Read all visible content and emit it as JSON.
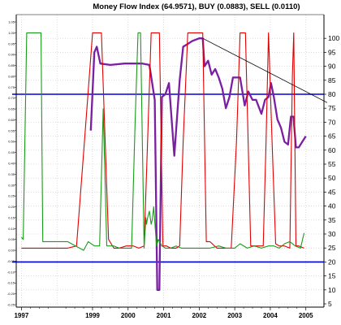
{
  "chart_data": {
    "type": "line",
    "title": "Money Flow Index (64.9571), BUY (0.0883), SELL (0.0110)",
    "x_labels": [
      "1997",
      "1999",
      "2000",
      "2001",
      "2002",
      "2003",
      "2004",
      "2005"
    ],
    "xlim": [
      1996.9,
      2005.6
    ],
    "right_axis": {
      "ylim": [
        5,
        105
      ],
      "tick_labels": [
        "100",
        "95",
        "90",
        "85",
        "80",
        "75",
        "70",
        "65",
        "60",
        "55",
        "50",
        "45",
        "40",
        "35",
        "30",
        "25",
        "20",
        "15",
        "10",
        "5"
      ]
    },
    "left_axis": {
      "ylim": [
        -0.25,
        1.05
      ],
      "tick_labels": [
        "1.05",
        "1.00",
        "0.95",
        "0.90",
        "0.85",
        "0.80",
        "0.75",
        "0.70",
        "0.65",
        "0.60",
        "0.55",
        "0.50",
        "0.45",
        "0.40",
        "0.35",
        "0.30",
        "0.25",
        "0.20",
        "0.15",
        "0.10",
        "0.05",
        "0.00",
        "-0.05",
        "-0.10",
        "-0.15",
        "-0.20",
        "-0.25"
      ]
    },
    "reference_lines": [
      {
        "axis": "right",
        "value": 80,
        "color": "#0000dd"
      },
      {
        "axis": "right",
        "value": 20,
        "color": "#0000dd"
      }
    ],
    "trend_line": {
      "x": [
        2002.1,
        2005.6
      ],
      "y": [
        100,
        77
      ],
      "color": "#000000"
    },
    "grid": true,
    "series": [
      {
        "axis": "right",
        "color": "#7b1fa2",
        "x": [
          1998.95,
          1999.05,
          1999.12,
          1999.22,
          1999.5,
          1999.9,
          2000.4,
          2000.6,
          2000.75,
          2000.82,
          2000.88,
          2000.95,
          2001.05,
          2001.15,
          2001.3,
          2001.45,
          2001.55,
          2001.68,
          2001.8,
          2002.0,
          2002.1,
          2002.15,
          2002.25,
          2002.35,
          2002.45,
          2002.55,
          2002.65,
          2002.75,
          2002.85,
          2002.95,
          2003.05,
          2003.15,
          2003.28,
          2003.38,
          2003.5,
          2003.6,
          2003.75,
          2003.85,
          2003.95,
          2004.02,
          2004.1,
          2004.2,
          2004.3,
          2004.4,
          2004.5,
          2004.58,
          2004.65,
          2004.72,
          2004.8,
          2004.9,
          2005.0
        ],
        "y": [
          67,
          95,
          97,
          91,
          90.5,
          91,
          91,
          90.5,
          78,
          10,
          10,
          79,
          80,
          84,
          58,
          85,
          97,
          98,
          99,
          100,
          100,
          90,
          92,
          87,
          89,
          86,
          82,
          75,
          79,
          86,
          86,
          86,
          76,
          81,
          78,
          78,
          73,
          78,
          79,
          84,
          79,
          71,
          68,
          63,
          62,
          72,
          72,
          61,
          61,
          63,
          65
        ]
      },
      {
        "axis": "left",
        "color": "#e00000",
        "x": [
          1997.0,
          1998.3,
          1998.55,
          1998.75,
          1999.0,
          1999.1,
          1999.25,
          1999.45,
          1999.6,
          1999.75,
          1999.95,
          2000.15,
          2000.3,
          2000.45,
          2000.65,
          2000.8,
          2000.88,
          2000.98,
          2001.08,
          2001.2,
          2001.35,
          2001.45,
          2001.55,
          2001.68,
          2001.85,
          2002.1,
          2002.2,
          2002.3,
          2002.5,
          2002.7,
          2002.9,
          2003.05,
          2003.15,
          2003.3,
          2003.45,
          2003.65,
          2003.8,
          2003.88,
          2003.95,
          2004.05,
          2004.15,
          2004.25,
          2004.4,
          2004.55,
          2004.62,
          2004.66,
          2004.72,
          2004.8,
          2004.95
        ],
        "y": [
          0.01,
          0.01,
          0.02,
          0.45,
          1.0,
          1.0,
          1.0,
          0.05,
          0.01,
          0.01,
          0.02,
          0.02,
          0.01,
          0.02,
          1.0,
          1.0,
          1.0,
          0.02,
          0.02,
          0.01,
          0.01,
          0.02,
          0.5,
          1.0,
          1.0,
          1.0,
          0.04,
          0.04,
          0.01,
          0.01,
          0.01,
          0.5,
          1.0,
          1.0,
          0.02,
          0.02,
          0.02,
          0.5,
          1.0,
          0.5,
          0.03,
          0.02,
          0.02,
          0.01,
          0.8,
          1.0,
          0.02,
          0.02,
          0.01
        ]
      },
      {
        "axis": "left",
        "color": "#1a9a1a",
        "x": [
          1997.0,
          1997.05,
          1997.15,
          1997.55,
          1997.6,
          1998.3,
          1998.75,
          1998.88,
          1999.05,
          1999.2,
          1999.3,
          1999.4,
          1999.5,
          1999.6,
          1999.75,
          1999.95,
          2000.1,
          2000.2,
          2000.28,
          2000.35,
          2000.45,
          2000.5,
          2000.52,
          2000.55,
          2000.6,
          2000.65,
          2000.68,
          2000.72,
          2000.8,
          2000.85,
          2000.95,
          2001.05,
          2001.2,
          2001.35,
          2001.5,
          2001.7,
          2002.1,
          2002.3,
          2002.55,
          2002.75,
          2003.0,
          2003.15,
          2003.35,
          2003.55,
          2003.75,
          2003.95,
          2004.1,
          2004.25,
          2004.4,
          2004.55,
          2004.7,
          2004.85,
          2004.95
        ],
        "y": [
          0.06,
          0.05,
          1.0,
          1.0,
          0.04,
          0.04,
          0.0,
          0.04,
          0.02,
          0.02,
          0.65,
          0.02,
          0.02,
          0.02,
          0.01,
          0.01,
          0.01,
          0.6,
          1.0,
          1.0,
          0.01,
          0.15,
          0.12,
          0.15,
          0.18,
          0.12,
          0.14,
          0.2,
          0.02,
          0.05,
          0.02,
          0.01,
          0.01,
          0.02,
          0.01,
          0.01,
          0.01,
          0.01,
          0.02,
          0.01,
          0.01,
          0.03,
          0.01,
          0.02,
          0.01,
          0.02,
          0.02,
          0.01,
          0.03,
          0.04,
          0.02,
          0.01,
          0.08
        ]
      }
    ]
  }
}
